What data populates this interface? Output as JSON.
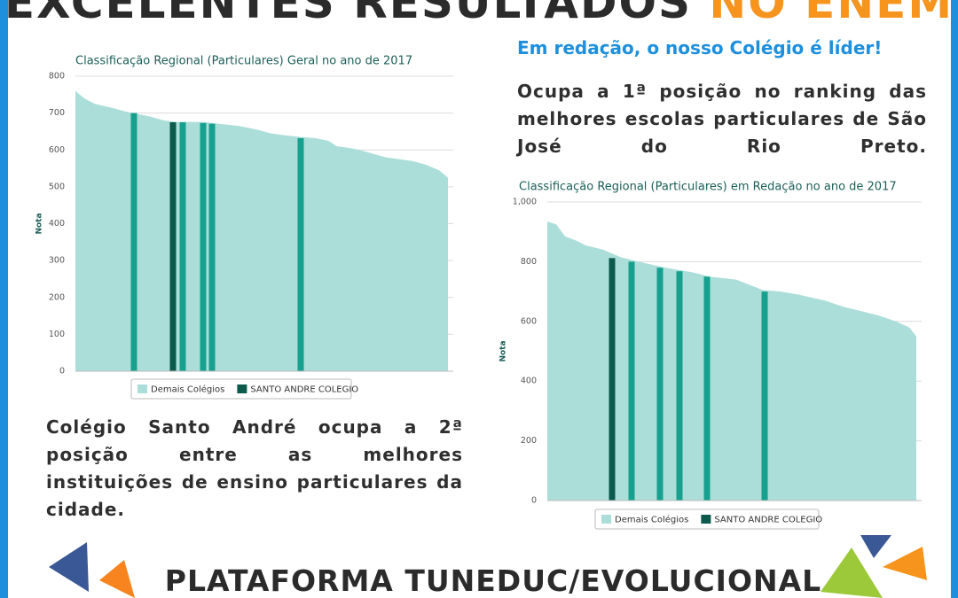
{
  "header": {
    "title_main": "EXCELENTES RESULTADOS",
    "title_highlight": "NO ENEM"
  },
  "left_text": "Colégio Santo André ocupa a 2ª posição entre as melhores instituições de ensino particulares da cidade.",
  "right_heading": "Em redação, o nosso Colégio é líder!",
  "right_text": "Ocupa a 1ª posição no ranking das melhores escolas particulares de São José do Rio Preto.",
  "footer": "PLATAFORMA TUNEDUC/EVOLUCIONAL",
  "chart_data": [
    {
      "type": "area_bar",
      "title": "Classificação Regional (Particulares) Geral no ano de 2017",
      "ylabel": "Nota",
      "xlim": [
        0,
        42
      ],
      "ylim": [
        0,
        800
      ],
      "yticks": [
        0,
        100,
        200,
        300,
        400,
        500,
        600,
        700,
        800
      ],
      "grid": true,
      "series": [
        {
          "name": "Demais Colégios",
          "color": "#acded9",
          "kind": "area",
          "x": [
            0,
            1,
            2.2,
            4,
            5.5,
            6.5,
            8.5,
            10,
            11.5,
            14.5,
            16.5,
            18.5,
            20.5,
            22,
            23.5,
            25.5,
            27,
            28.5,
            29.5,
            31,
            32,
            33.5,
            35,
            36.5,
            38,
            39.5,
            41,
            42
          ],
          "values": [
            760,
            740,
            725,
            715,
            705,
            700,
            690,
            680,
            676,
            676,
            670,
            665,
            655,
            645,
            640,
            635,
            632,
            625,
            610,
            605,
            600,
            590,
            580,
            575,
            570,
            560,
            545,
            525
          ]
        },
        {
          "name": "SANTO ANDRE COLEGIO",
          "color": "#0b5a4b",
          "kind": "bar",
          "x": [
            11
          ],
          "values": [
            675
          ]
        },
        {
          "color": "#17a08d",
          "kind": "bar",
          "x": [
            6.6,
            12.1,
            14.4,
            15.4,
            25.4
          ],
          "values": [
            700,
            675,
            673,
            671,
            632
          ]
        }
      ]
    },
    {
      "type": "area_bar",
      "title": "Classificação Regional (Particulares) em Redação no ano de 2017",
      "ylabel": "Nota",
      "xlim": [
        0,
        41.6
      ],
      "ylim": [
        0,
        1000
      ],
      "yticks": [
        0,
        200,
        400,
        600,
        800,
        {
          "value": 1000,
          "label": "1,000"
        }
      ],
      "grid": true,
      "series": [
        {
          "name": "Demais Colégios",
          "color": "#acded9",
          "kind": "area",
          "x": [
            0,
            1,
            2,
            3.3,
            4.3,
            6.3,
            8.3,
            10.3,
            13.3,
            16.3,
            18.3,
            21.3,
            24.3,
            26.3,
            28.3,
            31.3,
            33.3,
            35.3,
            37.3,
            39.3,
            40.8,
            41.6
          ],
          "values": [
            935,
            925,
            885,
            870,
            855,
            840,
            815,
            800,
            780,
            765,
            750,
            740,
            705,
            700,
            690,
            670,
            650,
            635,
            620,
            600,
            580,
            550
          ]
        },
        {
          "name": "SANTO ANDRE COLEGIO",
          "color": "#0b5a4b",
          "kind": "bar",
          "x": [
            7.3
          ],
          "values": [
            812
          ]
        },
        {
          "color": "#17a08d",
          "kind": "bar",
          "x": [
            9.5,
            12.7,
            14.9,
            18,
            24.5
          ],
          "values": [
            800,
            780,
            768,
            750,
            700
          ]
        }
      ]
    }
  ]
}
